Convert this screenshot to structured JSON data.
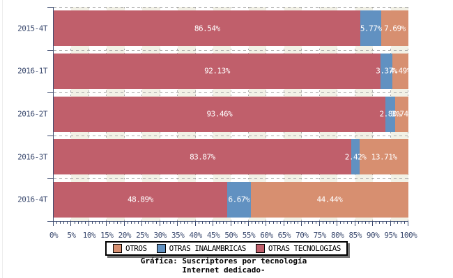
{
  "chart_data": {
    "type": "bar",
    "variant": "horizontal-stacked",
    "categories": [
      "2015-4T",
      "2016-1T",
      "2016-2T",
      "2016-3T",
      "2016-4T"
    ],
    "series": [
      {
        "name": "OTRAS TECNOLOGIAS",
        "color": "#c05f6b",
        "values": [
          86.54,
          92.13,
          93.46,
          83.87,
          48.89
        ],
        "labels": [
          "86.54%",
          "92.13%",
          "93.46%",
          "83.87%",
          "48.89%"
        ]
      },
      {
        "name": "OTRAS INALAMBRICAS",
        "color": "#6191c1",
        "values": [
          5.77,
          3.37,
          2.8,
          2.42,
          6.67
        ],
        "labels": [
          "5.77%",
          "3.37%",
          "2.80%",
          "2.42%",
          "6.67%"
        ]
      },
      {
        "name": "OTROS",
        "color": "#d78f70",
        "values": [
          7.69,
          4.49,
          3.74,
          13.71,
          44.44
        ],
        "labels": [
          "7.69%",
          "4.49%",
          "3.74%",
          "13.71%",
          "44.44%"
        ]
      }
    ],
    "xlim": [
      0,
      100
    ],
    "x_tick_step": 5,
    "x_minor_step": 1,
    "x_tick_suffix": "%",
    "legend": [
      "OTROS",
      "OTRAS INALAMBRICAS",
      "OTRAS TECNOLOGIAS"
    ],
    "legend_position": "bottom",
    "grid": true,
    "title": "Gráfica: Suscriptores por tecnología",
    "subtitle": "Internet dedicado-"
  },
  "style": {
    "axis_text_color": "#3b4a6f",
    "axis_line_color": "#3b4a6f",
    "bar_label_color": "#ffffff",
    "stripe_color": "#f2f1e6",
    "grid_color": "#a8a8a8",
    "background": "#ffffff"
  }
}
